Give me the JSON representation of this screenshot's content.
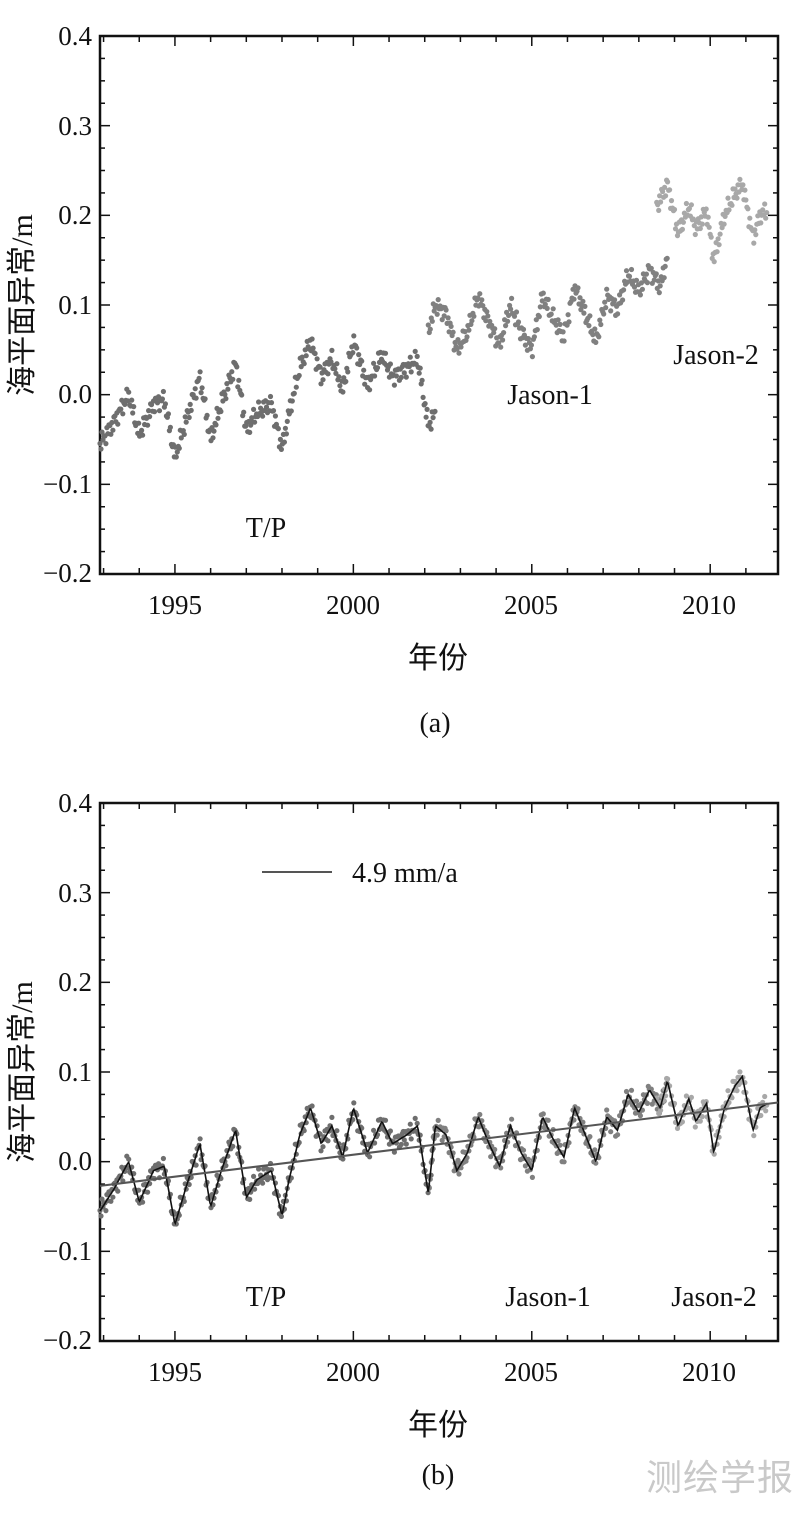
{
  "watermark": "测绘学报",
  "colors": {
    "axis": "#111111",
    "tp": "#6e6e6e",
    "jason1": "#808080",
    "jason2": "#a8a8a8",
    "smooth": "#111111",
    "trend": "#555555"
  },
  "chart_data": [
    {
      "id": "a",
      "type": "scatter",
      "caption": "(a)",
      "title": "",
      "xlabel": "年份",
      "ylabel": "海平面异常/m",
      "xlim": [
        1992.9,
        2011.9
      ],
      "ylim": [
        -0.2,
        0.4
      ],
      "xticks": [
        "1995",
        "2000",
        "2005",
        "2010"
      ],
      "yticks": [
        "0.4",
        "0.3",
        "0.2",
        "0.1",
        "0.0",
        "−0.1",
        "−0.2"
      ],
      "annotations": [
        {
          "key": "tp",
          "text": "T/P",
          "x": 1997.5,
          "y": -0.15
        },
        {
          "key": "j1",
          "text": "Jason-1",
          "x": 2005.6,
          "y": 0.0
        },
        {
          "key": "j2",
          "text": "Jason-2",
          "x": 2010.2,
          "y": 0.045
        }
      ],
      "series": [
        {
          "name": "T/P",
          "color_key": "tp",
          "start": 1992.9,
          "end": 2002.3,
          "offset": 0.0,
          "x": [
            1992.9,
            1993.3,
            1993.7,
            1994.0,
            1994.4,
            1994.7,
            1995.0,
            1995.3,
            1995.7,
            1996.0,
            1996.3,
            1996.7,
            1997.0,
            1997.3,
            1997.7,
            1998.0,
            1998.2,
            1998.5,
            1998.8,
            1999.1,
            1999.4,
            1999.7,
            2000.0,
            2000.4,
            2000.8,
            2001.1,
            2001.5,
            2001.8,
            2002.1,
            2002.3
          ],
          "values": [
            -0.055,
            -0.03,
            0.0,
            -0.045,
            -0.01,
            -0.005,
            -0.07,
            -0.03,
            0.02,
            -0.05,
            -0.01,
            0.035,
            -0.04,
            -0.02,
            -0.01,
            -0.06,
            -0.02,
            0.03,
            0.06,
            0.02,
            0.04,
            0.005,
            0.06,
            0.01,
            0.045,
            0.02,
            0.03,
            0.04,
            -0.035,
            -0.02
          ]
        },
        {
          "name": "Jason-1",
          "color_key": "jason1",
          "start": 2002.1,
          "end": 2008.8,
          "offset": 0.057,
          "x": [
            2002.1,
            2002.3,
            2002.6,
            2002.9,
            2003.2,
            2003.5,
            2003.8,
            2004.1,
            2004.4,
            2004.7,
            2005.0,
            2005.3,
            2005.6,
            2005.9,
            2006.2,
            2006.5,
            2006.8,
            2007.1,
            2007.4,
            2007.7,
            2008.0,
            2008.3,
            2008.6,
            2008.8
          ],
          "values": [
            0.07,
            0.1,
            0.09,
            0.05,
            0.07,
            0.11,
            0.08,
            0.055,
            0.1,
            0.07,
            0.05,
            0.11,
            0.085,
            0.065,
            0.12,
            0.09,
            0.06,
            0.11,
            0.095,
            0.135,
            0.115,
            0.14,
            0.12,
            0.155
          ]
        },
        {
          "name": "Jason-2",
          "color_key": "jason2",
          "start": 2008.5,
          "end": 2011.6,
          "offset": 0.14,
          "x": [
            2008.5,
            2008.8,
            2009.1,
            2009.4,
            2009.6,
            2009.9,
            2010.1,
            2010.4,
            2010.7,
            2010.9,
            2011.2,
            2011.4,
            2011.6
          ],
          "values": [
            0.21,
            0.235,
            0.18,
            0.21,
            0.185,
            0.205,
            0.15,
            0.2,
            0.225,
            0.235,
            0.175,
            0.2,
            0.205
          ]
        }
      ]
    },
    {
      "id": "b",
      "type": "scatter",
      "caption": "(b)",
      "title": "",
      "xlabel": "年份",
      "ylabel": "海平面异常/m",
      "xlim": [
        1992.9,
        2011.9
      ],
      "ylim": [
        -0.2,
        0.4
      ],
      "xticks": [
        "1995",
        "2000",
        "2005",
        "2010"
      ],
      "yticks": [
        "0.4",
        "0.3",
        "0.2",
        "0.1",
        "0.0",
        "−0.1",
        "−0.2"
      ],
      "legend": {
        "label": "4.9 mm/a",
        "position": "top-left"
      },
      "trend": {
        "rate": "4.9 mm/a",
        "x": [
          1992.9,
          2011.9
        ],
        "y": [
          -0.027,
          0.066
        ]
      },
      "annotations": [
        {
          "key": "tp",
          "text": "T/P",
          "x": 1997.5,
          "y": -0.15
        },
        {
          "key": "j1",
          "text": "Jason-1",
          "x": 2005.6,
          "y": -0.15
        },
        {
          "key": "j2",
          "text": "Jason-2",
          "x": 2010.2,
          "y": -0.15
        }
      ],
      "series": [
        {
          "name": "T/P",
          "color_key": "tp",
          "start": 1992.9,
          "end": 2002.3,
          "offset": 0.0
        },
        {
          "name": "Jason-1",
          "color_key": "jason1",
          "start": 2002.1,
          "end": 2008.8,
          "offset": 0.0
        },
        {
          "name": "Jason-2",
          "color_key": "jason2",
          "start": 2008.5,
          "end": 2011.6,
          "offset": 0.0
        }
      ],
      "anomaly": {
        "x": [
          1992.9,
          1993.3,
          1993.7,
          1994.0,
          1994.4,
          1994.7,
          1995.0,
          1995.3,
          1995.7,
          1996.0,
          1996.3,
          1996.7,
          1997.0,
          1997.3,
          1997.7,
          1998.0,
          1998.2,
          1998.5,
          1998.8,
          1999.1,
          1999.4,
          1999.7,
          2000.0,
          2000.4,
          2000.8,
          2001.1,
          2001.5,
          2001.8,
          2002.1,
          2002.3,
          2002.6,
          2002.9,
          2003.2,
          2003.5,
          2003.8,
          2004.1,
          2004.4,
          2004.7,
          2005.0,
          2005.3,
          2005.6,
          2005.9,
          2006.2,
          2006.5,
          2006.8,
          2007.1,
          2007.4,
          2007.7,
          2008.0,
          2008.3,
          2008.6,
          2008.8,
          2009.1,
          2009.4,
          2009.6,
          2009.9,
          2010.1,
          2010.4,
          2010.7,
          2010.9,
          2011.2,
          2011.4,
          2011.6
        ],
        "values": [
          -0.055,
          -0.03,
          0.0,
          -0.045,
          -0.01,
          -0.005,
          -0.07,
          -0.03,
          0.02,
          -0.05,
          -0.01,
          0.035,
          -0.04,
          -0.02,
          -0.01,
          -0.06,
          -0.02,
          0.03,
          0.06,
          0.02,
          0.04,
          0.005,
          0.06,
          0.01,
          0.045,
          0.02,
          0.03,
          0.04,
          -0.035,
          0.04,
          0.03,
          -0.01,
          0.01,
          0.05,
          0.02,
          -0.005,
          0.04,
          0.01,
          -0.01,
          0.05,
          0.025,
          0.005,
          0.06,
          0.03,
          0.0,
          0.05,
          0.035,
          0.075,
          0.055,
          0.08,
          0.06,
          0.09,
          0.04,
          0.07,
          0.045,
          0.065,
          0.01,
          0.06,
          0.085,
          0.095,
          0.035,
          0.06,
          0.065
        ]
      }
    }
  ]
}
